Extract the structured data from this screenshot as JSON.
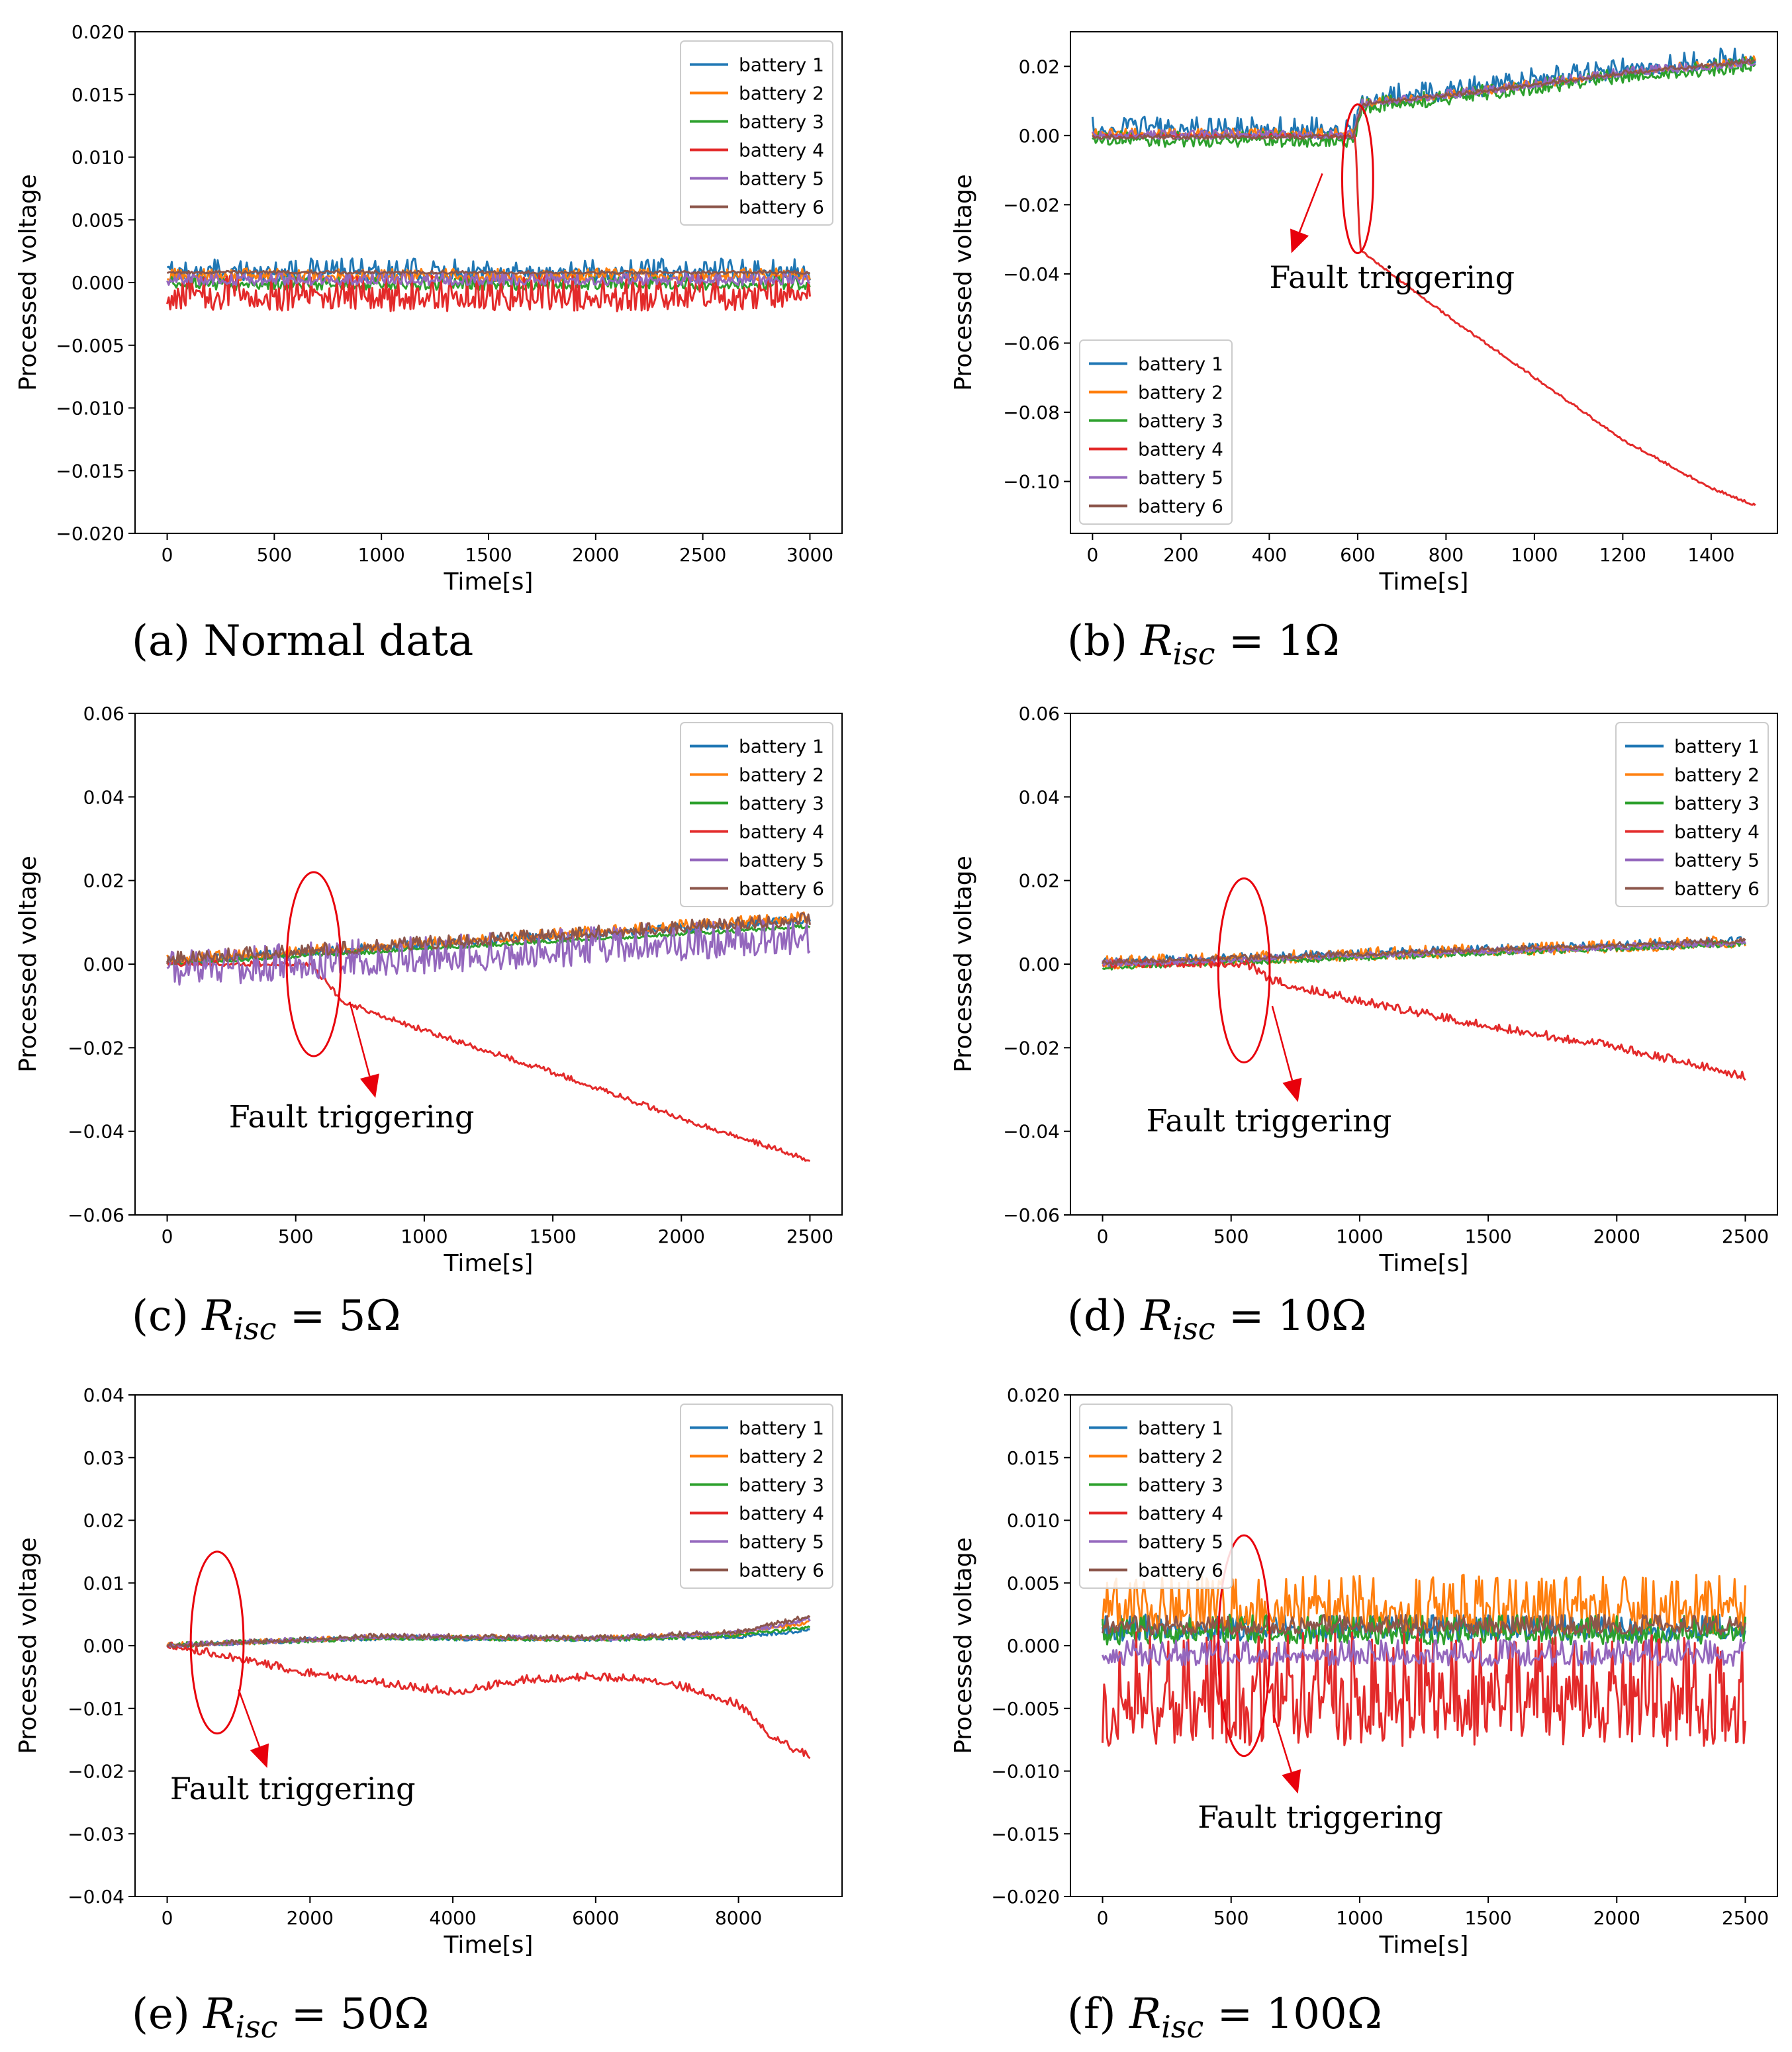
{
  "colors": {
    "battery_1": "#1f77b4",
    "battery_2": "#ff7f0e",
    "battery_3": "#2ca02c",
    "battery_4": "#e32a2a",
    "battery_5": "#9467bd",
    "battery_6": "#8c564b",
    "annotation": "#e8000b"
  },
  "chart_data": [
    {
      "id": "a",
      "type": "line",
      "caption_prefix": "(a) Normal data",
      "caption_math": "",
      "xlabel": "Time[s]",
      "ylabel": "Processed voltage",
      "xlim": [
        -150,
        3150
      ],
      "ylim": [
        -0.02,
        0.02
      ],
      "xticks": [
        0,
        500,
        1000,
        1500,
        2000,
        2500,
        3000
      ],
      "xtick_labels": [
        "0",
        "500",
        "1000",
        "1500",
        "2000",
        "2500",
        "3000"
      ],
      "yticks": [
        -0.02,
        -0.015,
        -0.01,
        -0.005,
        0,
        0.005,
        0.01,
        0.015,
        0.02
      ],
      "ytick_labels": [
        "−0.020",
        "−0.015",
        "−0.010",
        "−0.005",
        "0.000",
        "0.005",
        "0.010",
        "0.015",
        "0.020"
      ],
      "legend": "top-right",
      "fault": null,
      "series": [
        {
          "name": "battery 1",
          "x": [
            0,
            3000
          ],
          "y": [
            0.0008,
            0.0008
          ],
          "noise": 0.0007
        },
        {
          "name": "battery 2",
          "x": [
            0,
            3000
          ],
          "y": [
            0.0005,
            0.0005
          ],
          "noise": 0.0004
        },
        {
          "name": "battery 3",
          "x": [
            0,
            3000
          ],
          "y": [
            -0.0002,
            -0.0002
          ],
          "noise": 0.0004
        },
        {
          "name": "battery 4",
          "x": [
            0,
            3000
          ],
          "y": [
            -0.0012,
            -0.0012
          ],
          "noise": 0.0011
        },
        {
          "name": "battery 5",
          "x": [
            0,
            3000
          ],
          "y": [
            0.0002,
            0.0002
          ],
          "noise": 0.0004
        },
        {
          "name": "battery 6",
          "x": [
            0,
            3000
          ],
          "y": [
            0.0008,
            0.0008
          ],
          "noise": 0.0001
        }
      ]
    },
    {
      "id": "b",
      "type": "line",
      "caption_prefix": "(b) ",
      "caption_math": "1Ω",
      "xlabel": "Time[s]",
      "ylabel": "Processed voltage",
      "xlim": [
        -50,
        1550
      ],
      "ylim": [
        -0.115,
        0.03
      ],
      "xticks": [
        0,
        200,
        400,
        600,
        800,
        1000,
        1200,
        1400
      ],
      "xtick_labels": [
        "0",
        "200",
        "400",
        "600",
        "800",
        "1000",
        "1200",
        "1400"
      ],
      "yticks": [
        -0.1,
        -0.08,
        -0.06,
        -0.04,
        -0.02,
        0,
        0.02
      ],
      "ytick_labels": [
        "−0.10",
        "−0.08",
        "−0.06",
        "−0.04",
        "−0.02",
        "0.00",
        "0.02"
      ],
      "legend": "lower-left",
      "fault": {
        "label": "Fault triggering",
        "cx": 600,
        "cy": -0.0125,
        "rx": 35,
        "ry": 0.0215,
        "arrow_from": [
          520,
          -0.011
        ],
        "arrow_to": [
          450,
          -0.034
        ],
        "text_x": 400,
        "text_y": -0.044
      },
      "series": [
        {
          "name": "battery 1",
          "x": [
            0,
            590,
            610,
            900,
            1200,
            1500
          ],
          "y": [
            0.0015,
            0.0015,
            0.01,
            0.014,
            0.019,
            0.022
          ],
          "noise": 0.0025
        },
        {
          "name": "battery 2",
          "x": [
            0,
            590,
            610,
            900,
            1200,
            1500
          ],
          "y": [
            0.0005,
            0.0005,
            0.009,
            0.013,
            0.018,
            0.0215
          ],
          "noise": 0.001
        },
        {
          "name": "battery 3",
          "x": [
            0,
            590,
            610,
            900,
            1200,
            1500
          ],
          "y": [
            -0.0015,
            -0.0015,
            0.008,
            0.012,
            0.017,
            0.02
          ],
          "noise": 0.0018
        },
        {
          "name": "battery 4",
          "x": [
            0,
            595,
            605,
            800,
            1000,
            1200,
            1400,
            1500
          ],
          "y": [
            0,
            0,
            -0.033,
            -0.052,
            -0.07,
            -0.088,
            -0.102,
            -0.107
          ],
          "noise": 0.0003
        },
        {
          "name": "battery 5",
          "x": [
            0,
            590,
            610,
            900,
            1200,
            1500
          ],
          "y": [
            0,
            0,
            0.009,
            0.013,
            0.018,
            0.021
          ],
          "noise": 0.001
        },
        {
          "name": "battery 6",
          "x": [
            0,
            590,
            610,
            900,
            1200,
            1500
          ],
          "y": [
            -0.0005,
            -0.0005,
            0.009,
            0.013,
            0.018,
            0.0215
          ],
          "noise": 0.0005
        }
      ]
    },
    {
      "id": "c",
      "type": "line",
      "caption_prefix": "(c) ",
      "caption_math": "5Ω",
      "xlabel": "Time[s]",
      "ylabel": "Processed voltage",
      "xlim": [
        -125,
        2625
      ],
      "ylim": [
        -0.06,
        0.06
      ],
      "xticks": [
        0,
        500,
        1000,
        1500,
        2000,
        2500
      ],
      "xtick_labels": [
        "0",
        "500",
        "1000",
        "1500",
        "2000",
        "2500"
      ],
      "yticks": [
        -0.06,
        -0.04,
        -0.02,
        0,
        0.02,
        0.04,
        0.06
      ],
      "ytick_labels": [
        "−0.06",
        "−0.04",
        "−0.02",
        "0.00",
        "0.02",
        "0.04",
        "0.06"
      ],
      "legend": "top-right",
      "fault": {
        "label": "Fault triggering",
        "cx": 570,
        "cy": 0.0,
        "rx": 105,
        "ry": 0.022,
        "arrow_from": [
          710,
          -0.009
        ],
        "arrow_to": [
          810,
          -0.032
        ],
        "text_x": 240,
        "text_y": -0.039
      },
      "series": [
        {
          "name": "battery 1",
          "x": [
            0,
            2500
          ],
          "y": [
            0.0005,
            0.0105
          ],
          "noise": 0.0008
        },
        {
          "name": "battery 2",
          "x": [
            0,
            2500
          ],
          "y": [
            0.0008,
            0.011
          ],
          "noise": 0.001
        },
        {
          "name": "battery 3",
          "x": [
            0,
            2500
          ],
          "y": [
            0,
            0.009
          ],
          "noise": 0.0004
        },
        {
          "name": "battery 4",
          "x": [
            0,
            560,
            680,
            1000,
            1500,
            2000,
            2500
          ],
          "y": [
            0,
            0,
            -0.009,
            -0.016,
            -0.026,
            -0.037,
            -0.047
          ],
          "noise": 0.0005
        },
        {
          "name": "battery 5",
          "x": [
            0,
            2500
          ],
          "y": [
            -0.002,
            0.006
          ],
          "noise": 0.0035
        },
        {
          "name": "battery 6",
          "x": [
            0,
            2500
          ],
          "y": [
            0.001,
            0.0105
          ],
          "noise": 0.0012
        }
      ]
    },
    {
      "id": "d",
      "type": "line",
      "caption_prefix": "(d) ",
      "caption_math": "10Ω",
      "xlabel": "Time[s]",
      "ylabel": "Processed voltage",
      "xlim": [
        -125,
        2625
      ],
      "ylim": [
        -0.06,
        0.06
      ],
      "xticks": [
        0,
        500,
        1000,
        1500,
        2000,
        2500
      ],
      "xtick_labels": [
        "0",
        "500",
        "1000",
        "1500",
        "2000",
        "2500"
      ],
      "yticks": [
        -0.06,
        -0.04,
        -0.02,
        0,
        0.02,
        0.04,
        0.06
      ],
      "ytick_labels": [
        "−0.06",
        "−0.04",
        "−0.02",
        "0.00",
        "0.02",
        "0.04",
        "0.06"
      ],
      "legend": "top-right",
      "fault": {
        "label": "Fault triggering",
        "cx": 550,
        "cy": -0.0015,
        "rx": 100,
        "ry": 0.022,
        "arrow_from": [
          660,
          -0.01
        ],
        "arrow_to": [
          760,
          -0.033
        ],
        "text_x": 170,
        "text_y": -0.04
      },
      "series": [
        {
          "name": "battery 1",
          "x": [
            0,
            2500
          ],
          "y": [
            0.0005,
            0.0055
          ],
          "noise": 0.0007
        },
        {
          "name": "battery 2",
          "x": [
            0,
            2500
          ],
          "y": [
            0,
            0.005
          ],
          "noise": 0.0012
        },
        {
          "name": "battery 3",
          "x": [
            0,
            2500
          ],
          "y": [
            -0.0008,
            0.0048
          ],
          "noise": 0.0006
        },
        {
          "name": "battery 4",
          "x": [
            0,
            560,
            650,
            1000,
            1500,
            2000,
            2500
          ],
          "y": [
            0,
            0,
            -0.004,
            -0.009,
            -0.015,
            -0.02,
            -0.027
          ],
          "noise": 0.0008
        },
        {
          "name": "battery 5",
          "x": [
            0,
            2500
          ],
          "y": [
            0,
            0.005
          ],
          "noise": 0.0006
        },
        {
          "name": "battery 6",
          "x": [
            0,
            2500
          ],
          "y": [
            0.0003,
            0.0055
          ],
          "noise": 0.0005
        }
      ]
    },
    {
      "id": "e",
      "type": "line",
      "caption_prefix": "(e) ",
      "caption_math": "50Ω",
      "xlabel": "Time[s]",
      "ylabel": "Processed voltage",
      "xlim": [
        -450,
        9450
      ],
      "ylim": [
        -0.04,
        0.04
      ],
      "xticks": [
        0,
        2000,
        4000,
        6000,
        8000
      ],
      "xtick_labels": [
        "0",
        "2000",
        "4000",
        "6000",
        "8000"
      ],
      "yticks": [
        -0.04,
        -0.03,
        -0.02,
        -0.01,
        0,
        0.01,
        0.02,
        0.03,
        0.04
      ],
      "ytick_labels": [
        "−0.04",
        "−0.03",
        "−0.02",
        "−0.01",
        "0.00",
        "0.01",
        "0.02",
        "0.03",
        "0.04"
      ],
      "legend": "top-right",
      "fault": {
        "label": "Fault triggering",
        "cx": 700,
        "cy": 0.0005,
        "rx": 370,
        "ry": 0.0145,
        "arrow_from": [
          1000,
          -0.007
        ],
        "arrow_to": [
          1400,
          -0.0195
        ],
        "text_x": 40,
        "text_y": -0.0245
      },
      "series": [
        {
          "name": "battery 1",
          "x": [
            0,
            3000,
            6000,
            8000,
            9000
          ],
          "y": [
            0,
            0.0012,
            0.001,
            0.0014,
            0.0025
          ],
          "noise": 0.0003
        },
        {
          "name": "battery 2",
          "x": [
            0,
            3000,
            6000,
            8000,
            9000
          ],
          "y": [
            0,
            0.0013,
            0.0011,
            0.0018,
            0.0038
          ],
          "noise": 0.0003
        },
        {
          "name": "battery 3",
          "x": [
            0,
            3000,
            6000,
            8000,
            9000
          ],
          "y": [
            0,
            0.0012,
            0.001,
            0.0016,
            0.003
          ],
          "noise": 0.0003
        },
        {
          "name": "battery 4",
          "x": [
            0,
            500,
            2000,
            4000,
            5000,
            6000,
            7000,
            8000,
            8500,
            9000
          ],
          "y": [
            0,
            -0.001,
            -0.0045,
            -0.0075,
            -0.0055,
            -0.005,
            -0.0058,
            -0.0095,
            -0.015,
            -0.0178
          ],
          "noise": 0.0005
        },
        {
          "name": "battery 5",
          "x": [
            0,
            3000,
            6000,
            8000,
            9000
          ],
          "y": [
            0,
            0.0014,
            0.0011,
            0.002,
            0.0042
          ],
          "noise": 0.0003
        },
        {
          "name": "battery 6",
          "x": [
            0,
            3000,
            6000,
            8000,
            9000
          ],
          "y": [
            0,
            0.0015,
            0.0012,
            0.0022,
            0.0046
          ],
          "noise": 0.0003
        }
      ]
    },
    {
      "id": "f",
      "type": "line",
      "caption_prefix": "(f) ",
      "caption_math": "100Ω",
      "xlabel": "Time[s]",
      "ylabel": "Processed voltage",
      "xlim": [
        -125,
        2625
      ],
      "ylim": [
        -0.02,
        0.02
      ],
      "xticks": [
        0,
        500,
        1000,
        1500,
        2000,
        2500
      ],
      "xtick_labels": [
        "0",
        "500",
        "1000",
        "1500",
        "2000",
        "2500"
      ],
      "yticks": [
        -0.02,
        -0.015,
        -0.01,
        -0.005,
        0,
        0.005,
        0.01,
        0.015,
        0.02
      ],
      "ytick_labels": [
        "−0.020",
        "−0.015",
        "−0.010",
        "−0.005",
        "0.000",
        "0.005",
        "0.010",
        "0.015",
        "0.020"
      ],
      "legend": "top-left",
      "fault": {
        "label": "Fault triggering",
        "cx": 550,
        "cy": 0.0,
        "rx": 100,
        "ry": 0.0088,
        "arrow_from": [
          665,
          -0.0055
        ],
        "arrow_to": [
          760,
          -0.0118
        ],
        "text_x": 370,
        "text_y": -0.0145
      },
      "series": [
        {
          "name": "battery 1",
          "x": [
            0,
            2500
          ],
          "y": [
            0.0012,
            0.0012
          ],
          "noise": 0.0008
        },
        {
          "name": "battery 2",
          "x": [
            0,
            2500
          ],
          "y": [
            0.0028,
            0.0028
          ],
          "noise": 0.0018
        },
        {
          "name": "battery 3",
          "x": [
            0,
            2500
          ],
          "y": [
            0.001,
            0.001
          ],
          "noise": 0.0009
        },
        {
          "name": "battery 4",
          "x": [
            0,
            2500
          ],
          "y": [
            -0.0045,
            -0.0045
          ],
          "noise": 0.0035
        },
        {
          "name": "battery 5",
          "x": [
            0,
            2500
          ],
          "y": [
            -0.0008,
            -0.0008
          ],
          "noise": 0.0008
        },
        {
          "name": "battery 6",
          "x": [
            0,
            2500
          ],
          "y": [
            0.0015,
            0.0015
          ],
          "noise": 0.0006
        }
      ]
    }
  ]
}
